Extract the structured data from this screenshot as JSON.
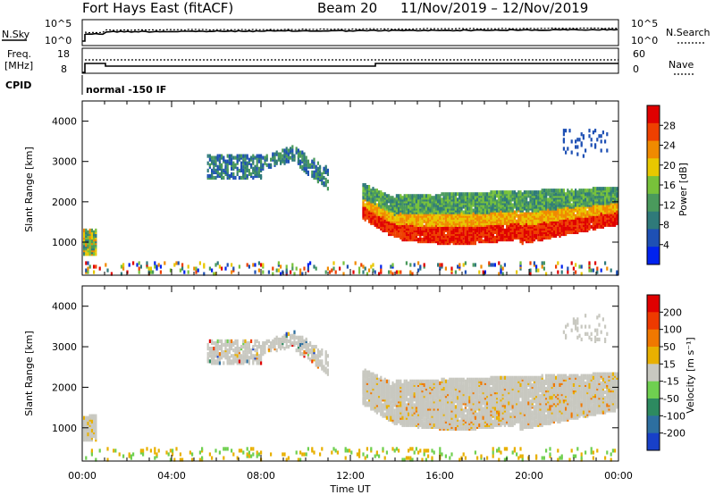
{
  "header": {
    "station": "Fort Hays East (fitACF)",
    "beam": "Beam 20",
    "dates": "11/Nov/2019 – 12/Nov/2019"
  },
  "panels": {
    "noise": {
      "left_label": "N.Sky",
      "right_label": "N.Search",
      "left_ticks": [
        "10^5",
        "10^0"
      ],
      "right_ticks": [
        "10^5",
        "10^0"
      ]
    },
    "freq": {
      "left_label_1": "Freq.",
      "left_label_2": "[MHz]",
      "right_label": "Nave",
      "left_ticks": [
        "18",
        "8"
      ],
      "right_ticks": [
        "60",
        "0"
      ]
    },
    "cpid": {
      "label": "CPID",
      "mode": "normal -150 IF"
    },
    "power": {
      "ylabel": "Slant Range [km]",
      "colorbar_label": "Power [dB]",
      "colorbar_ticks": [
        "28",
        "24",
        "20",
        "16",
        "12",
        "8",
        "4"
      ]
    },
    "velocity": {
      "ylabel": "Slant Range [km]",
      "colorbar_label": "Velocity [m s⁻¹]",
      "colorbar_ticks": [
        "200",
        "100",
        "50",
        "15",
        "-15",
        "-50",
        "-100",
        "-200"
      ]
    }
  },
  "xaxis": {
    "label": "Time UT",
    "ticks": [
      "00:00",
      "04:00",
      "08:00",
      "12:00",
      "16:00",
      "20:00",
      "00:00"
    ]
  },
  "colors": {
    "power_scale": [
      "#0022ee",
      "#1e50b4",
      "#2f7a7a",
      "#4a9a5c",
      "#78c23a",
      "#e8c800",
      "#f08a00",
      "#ee4000",
      "#e00000"
    ],
    "velocity_scale": [
      "#1840c8",
      "#2d6fa0",
      "#2d8a60",
      "#6fd050",
      "#c8c8c0",
      "#e8b000",
      "#f07800",
      "#ee3a00",
      "#e00000"
    ]
  },
  "chart_data": [
    {
      "type": "heatmap",
      "name": "power",
      "x_range_hours": [
        0,
        24
      ],
      "y_range_km": [
        180,
        4500
      ],
      "yticks_km": [
        1000,
        2000,
        3000,
        4000
      ],
      "colorbar_range_db": [
        0,
        30
      ],
      "regions": [
        {
          "t0": 0.0,
          "t1": 0.6,
          "r0": 700,
          "r1": 1300,
          "level": "mixed"
        },
        {
          "t0": 5.5,
          "t1": 8.0,
          "r0": 2500,
          "r1": 3200,
          "level": "low"
        },
        {
          "t0": 8.0,
          "t1": 9.5,
          "r0": 2800,
          "r1": 3450,
          "level": "low"
        },
        {
          "t0": 9.5,
          "t1": 11.0,
          "r0": 2200,
          "r1": 2900,
          "level": "low"
        },
        {
          "t0": 12.5,
          "t1": 24.0,
          "r0": 850,
          "r1": 2300,
          "level": "high"
        },
        {
          "t0": 21.5,
          "t1": 23.5,
          "r0": 3100,
          "r1": 3800,
          "level": "low"
        },
        {
          "t0": 0.0,
          "t1": 24.0,
          "r0": 180,
          "r1": 550,
          "level": "sparse"
        }
      ]
    },
    {
      "type": "heatmap",
      "name": "velocity",
      "x_range_hours": [
        0,
        24
      ],
      "y_range_km": [
        180,
        4500
      ],
      "yticks_km": [
        1000,
        2000,
        3000,
        4000
      ],
      "colorbar_range_ms": [
        -200,
        200
      ],
      "regions": [
        {
          "t0": 0.0,
          "t1": 0.6,
          "r0": 700,
          "r1": 1300,
          "level": "near-zero"
        },
        {
          "t0": 5.5,
          "t1": 11.0,
          "r0": 2200,
          "r1": 3450,
          "level": "near-zero"
        },
        {
          "t0": 12.5,
          "t1": 24.0,
          "r0": 850,
          "r1": 2300,
          "level": "near-zero"
        },
        {
          "t0": 0.0,
          "t1": 24.0,
          "r0": 180,
          "r1": 550,
          "level": "negative"
        }
      ]
    }
  ]
}
